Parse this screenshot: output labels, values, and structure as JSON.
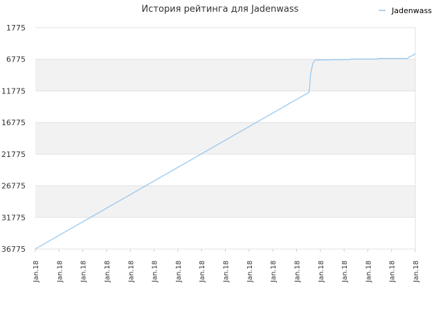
{
  "chart_data": {
    "type": "line",
    "title": "История рейтинга для Jadenwass",
    "xlabel": "",
    "ylabel": "",
    "y_inverted": true,
    "ylim": [
      1775,
      36775
    ],
    "yticks": [
      1775,
      6775,
      11775,
      16775,
      21775,
      26775,
      31775,
      36775
    ],
    "xticks": [
      "Jan.18",
      "Jan.18",
      "Jan.18",
      "Jan.18",
      "Jan.18",
      "Jan.18",
      "Jan.18",
      "Jan.18",
      "Jan.18",
      "Jan.18",
      "Jan.18",
      "Jan.18",
      "Jan.18",
      "Jan.18",
      "Jan.18",
      "Jan.18",
      "Jan.18"
    ],
    "grid": true,
    "band_colors": [
      "#f2f2f2",
      "#ffffff"
    ],
    "line_color": "#90c4f0",
    "legend": {
      "position": "top-right"
    },
    "series": [
      {
        "name": "Jadenwass",
        "x": [
          0.0,
          0.005,
          0.72,
          0.722,
          0.724,
          0.73,
          0.735,
          0.74,
          0.75,
          0.78,
          0.785,
          0.825,
          0.83,
          0.9,
          0.905,
          0.98,
          0.985,
          0.993,
          1.0
        ],
        "values": [
          36775,
          36600,
          12000,
          11200,
          9200,
          7500,
          6980,
          6875,
          6875,
          6860,
          6840,
          6840,
          6740,
          6740,
          6640,
          6640,
          6350,
          6200,
          5850
        ]
      }
    ]
  }
}
